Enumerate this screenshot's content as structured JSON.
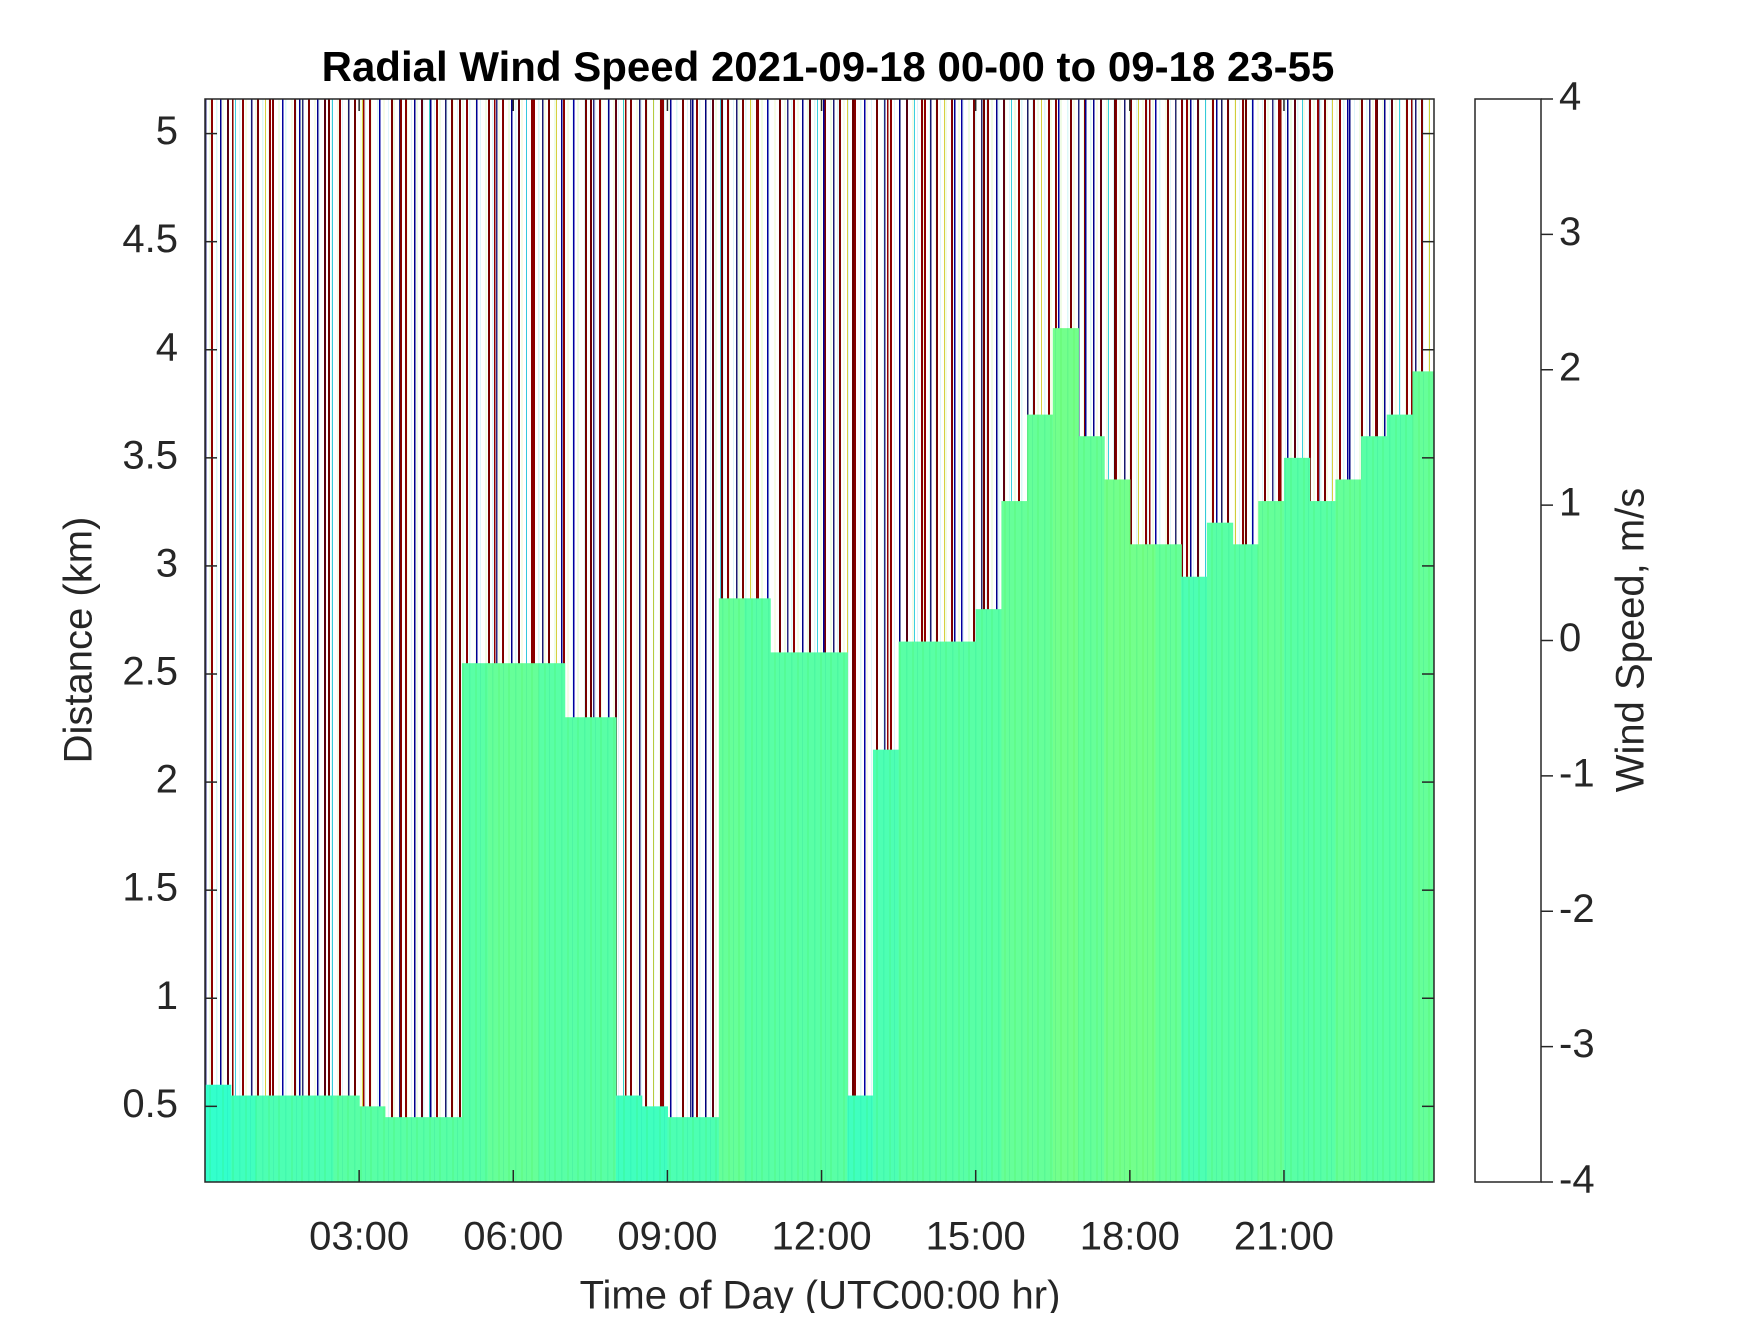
{
  "chart_data": {
    "type": "heatmap",
    "title": "Radial Wind Speed 2021-09-18 00-00 to 09-18 23-55",
    "x_label": "Time of Day (UTC00:00 hr)",
    "y_label": "Distance (km)",
    "colorbar_label": "Wind Speed, m/s",
    "x_edges": [
      0,
      0.5,
      1,
      1.5,
      2,
      2.5,
      3,
      3.5,
      4,
      4.5,
      5,
      5.5,
      6,
      6.5,
      7,
      7.5,
      8,
      8.5,
      9,
      9.5,
      10,
      10.5,
      11,
      11.5,
      12,
      12.5,
      13,
      13.5,
      14,
      14.5,
      15,
      15.5,
      16,
      16.5,
      17,
      17.5,
      18,
      18.5,
      19,
      19.5,
      20,
      20.5,
      21,
      21.5,
      22,
      22.5,
      23,
      23.5,
      24
    ],
    "valid_top": [
      0.6,
      0.55,
      0.55,
      0.55,
      0.55,
      0.55,
      0.5,
      0.45,
      0.45,
      0.45,
      2.55,
      2.55,
      2.55,
      2.55,
      2.3,
      2.3,
      0.55,
      0.5,
      0.45,
      0.45,
      2.85,
      2.85,
      2.6,
      2.6,
      2.6,
      0.55,
      2.15,
      2.65,
      2.65,
      2.65,
      2.8,
      3.3,
      3.7,
      4.1,
      3.6,
      3.4,
      3.1,
      3.1,
      2.95,
      3.2,
      3.1,
      3.3,
      3.5,
      3.3,
      3.4,
      3.6,
      3.7,
      3.9
    ],
    "values": [
      -0.6,
      -0.5,
      -0.4,
      -0.4,
      -0.4,
      -0.3,
      -0.3,
      -0.3,
      -0.3,
      -0.3,
      -0.3,
      -0.2,
      -0.2,
      -0.3,
      -0.3,
      -0.3,
      -0.5,
      -0.5,
      -0.4,
      -0.4,
      -0.2,
      -0.3,
      -0.3,
      -0.3,
      -0.3,
      -0.5,
      -0.4,
      -0.3,
      -0.3,
      -0.3,
      -0.3,
      -0.2,
      -0.2,
      -0.1,
      -0.2,
      -0.1,
      -0.1,
      -0.2,
      -0.4,
      -0.3,
      -0.3,
      -0.2,
      -0.3,
      -0.3,
      -0.2,
      -0.3,
      -0.3,
      -0.2
    ],
    "xlim": [
      0,
      23.92
    ],
    "ylim": [
      0.15,
      5.16
    ],
    "xticks": [
      {
        "value": 3,
        "label": "03:00"
      },
      {
        "value": 6,
        "label": "06:00"
      },
      {
        "value": 9,
        "label": "09:00"
      },
      {
        "value": 12,
        "label": "12:00"
      },
      {
        "value": 15,
        "label": "15:00"
      },
      {
        "value": 18,
        "label": "18:00"
      },
      {
        "value": 21,
        "label": "21:00"
      }
    ],
    "yticks": [
      0.5,
      1,
      1.5,
      2,
      2.5,
      3,
      3.5,
      4,
      4.5,
      5
    ],
    "clim": [
      -4,
      4
    ],
    "cticks": [
      -4,
      -3,
      -2,
      -1,
      0,
      1,
      2,
      3,
      4
    ],
    "colormap": "jet"
  }
}
